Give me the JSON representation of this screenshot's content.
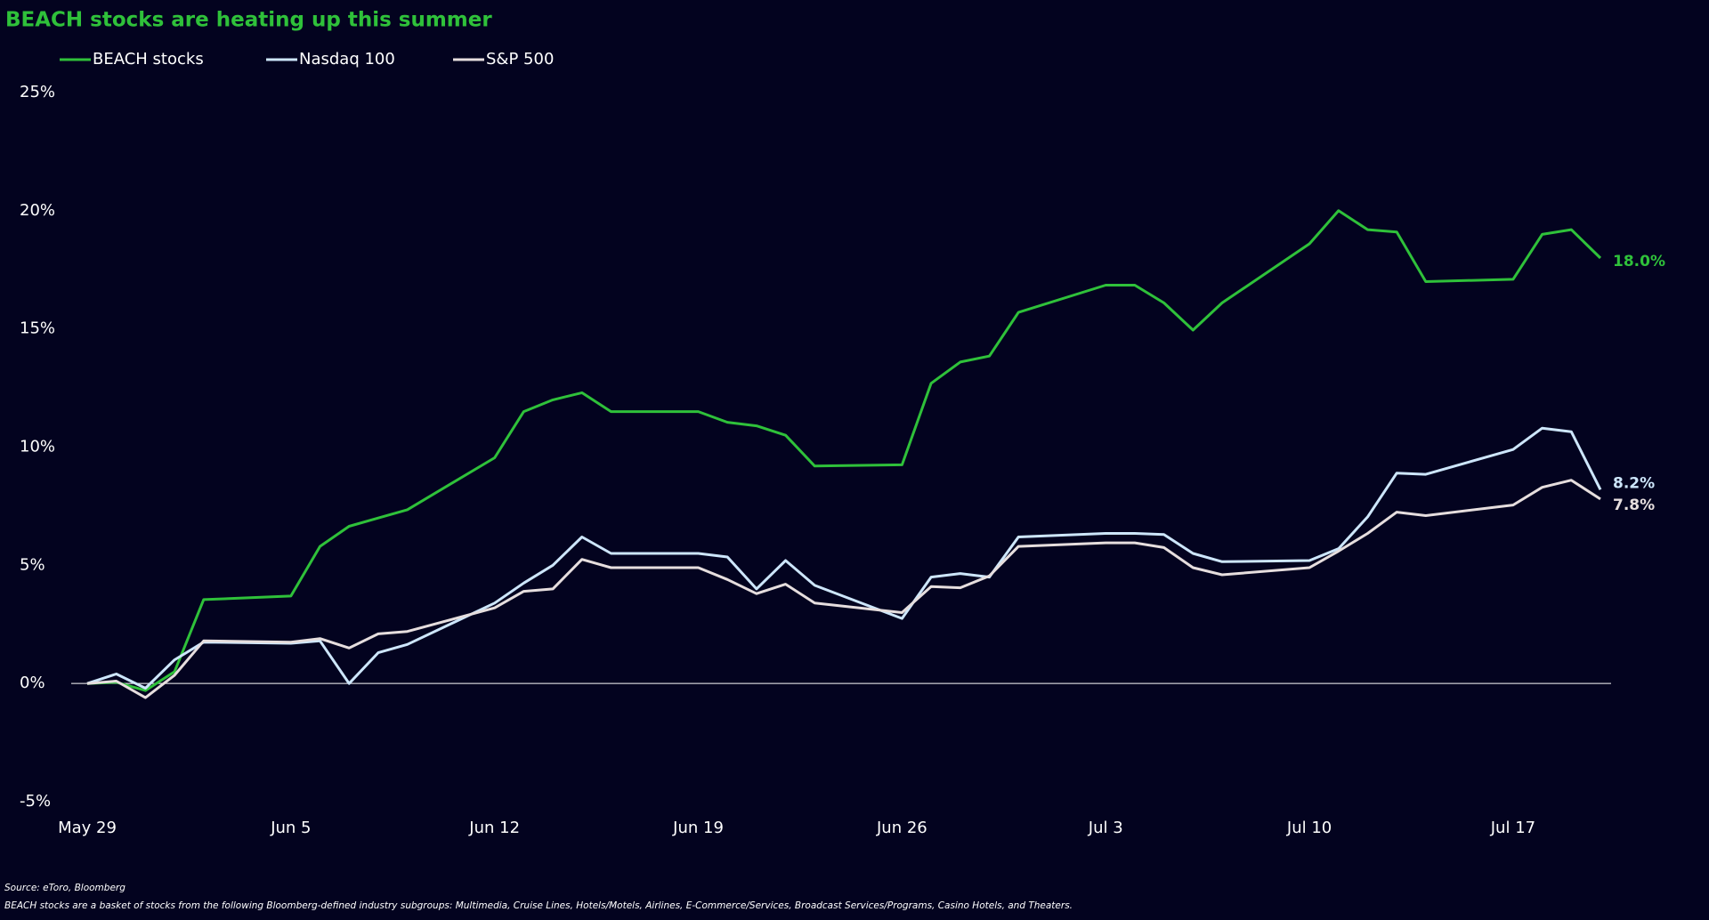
{
  "chart_data": {
    "type": "line",
    "title": "BEACH stocks are heating up this summer",
    "source": "Source: eToro, Bloomberg",
    "note": "BEACH stocks are a basket of stocks from the following Bloomberg-defined industry subgroups: Multimedia, Cruise Lines, Hotels/Motels, Airlines, E-Commerce/Services, Broadcast Services/Programs, Casino Hotels, and Theaters.",
    "x": [
      "May 29",
      "May 30",
      "May 31",
      "Jun 1",
      "Jun 2",
      "Jun 5",
      "Jun 6",
      "Jun 7",
      "Jun 8",
      "Jun 9",
      "Jun 12",
      "Jun 13",
      "Jun 14",
      "Jun 15",
      "Jun 16",
      "Jun 19",
      "Jun 20",
      "Jun 21",
      "Jun 22",
      "Jun 23",
      "Jun 26",
      "Jun 27",
      "Jun 28",
      "Jun 29",
      "Jun 30",
      "Jul 3",
      "Jul 4",
      "Jul 5",
      "Jul 6",
      "Jul 7",
      "Jul 10",
      "Jul 11",
      "Jul 12",
      "Jul 13",
      "Jul 14",
      "Jul 17",
      "Jul 18",
      "Jul 19",
      "Jul 20"
    ],
    "xlim": [
      "May 29",
      "Jul 20"
    ],
    "xticks": [
      "May 29",
      "Jun 5",
      "Jun 12",
      "Jun 19",
      "Jun 26",
      "Jul 3",
      "Jul 10",
      "Jul 17"
    ],
    "ylim": [
      -5,
      25
    ],
    "yticks": [
      {
        "value": -5,
        "label": "-5%"
      },
      {
        "value": 0,
        "label": "0%"
      },
      {
        "value": 5,
        "label": "5%"
      },
      {
        "value": 10,
        "label": "10%"
      },
      {
        "value": 15,
        "label": "15%"
      },
      {
        "value": 20,
        "label": "20%"
      },
      {
        "value": 25,
        "label": "25%"
      }
    ],
    "grid": false,
    "legend": "top-left",
    "series": [
      {
        "name": "BEACH stocks",
        "color": "#2fc13a",
        "end_label": "18.0%",
        "values": [
          0,
          0.05,
          -0.3,
          0.5,
          3.55,
          3.7,
          5.8,
          6.65,
          7.0,
          7.35,
          9.55,
          11.5,
          12.0,
          12.3,
          11.5,
          11.5,
          11.05,
          10.9,
          10.5,
          9.2,
          9.25,
          12.7,
          13.6,
          13.85,
          15.7,
          16.85,
          16.85,
          16.1,
          14.95,
          16.1,
          18.6,
          20.0,
          19.2,
          19.1,
          17.0,
          17.1,
          19.0,
          19.2,
          18.0
        ]
      },
      {
        "name": "Nasdaq 100",
        "color": "#cde6fb",
        "end_label": "8.2%",
        "values": [
          0,
          0.4,
          -0.2,
          1.0,
          1.75,
          1.7,
          1.8,
          0,
          1.3,
          1.65,
          3.4,
          4.25,
          5.0,
          6.2,
          5.5,
          5.5,
          5.35,
          4.0,
          5.2,
          4.15,
          2.75,
          4.5,
          4.65,
          4.5,
          6.2,
          6.35,
          6.35,
          6.3,
          5.5,
          5.15,
          5.2,
          5.7,
          7.05,
          8.9,
          8.85,
          9.9,
          10.8,
          10.65,
          8.2
        ]
      },
      {
        "name": "S&P 500",
        "color": "#e6dede",
        "end_label": "7.8%",
        "values": [
          0,
          0.1,
          -0.6,
          0.35,
          1.8,
          1.75,
          1.9,
          1.5,
          2.1,
          2.2,
          3.2,
          3.9,
          4.0,
          5.25,
          4.9,
          4.9,
          4.4,
          3.8,
          4.2,
          3.4,
          3.0,
          4.1,
          4.05,
          4.55,
          5.8,
          5.95,
          5.95,
          5.75,
          4.9,
          4.6,
          4.9,
          5.6,
          6.35,
          7.25,
          7.1,
          7.55,
          8.3,
          8.6,
          7.8
        ]
      }
    ]
  }
}
